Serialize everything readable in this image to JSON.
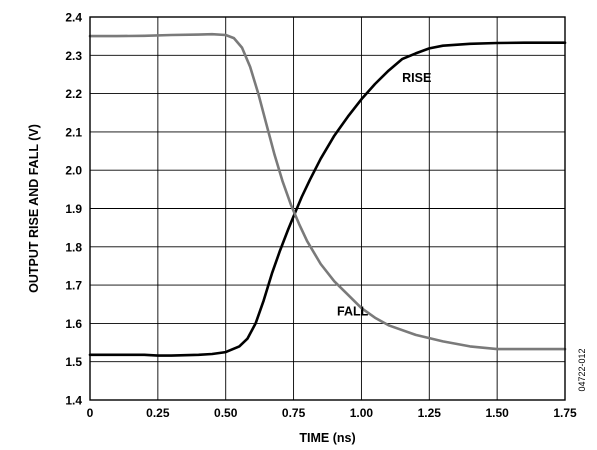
{
  "chart_data": {
    "type": "line",
    "xlabel": "TIME (ns)",
    "ylabel": "OUTPUT RISE AND FALL (V)",
    "xlim": [
      0,
      1.75
    ],
    "ylim": [
      1.4,
      2.4
    ],
    "x_ticks": [
      "0",
      "0.25",
      "0.50",
      "0.75",
      "1.00",
      "1.25",
      "1.50",
      "1.75"
    ],
    "y_ticks": [
      "1.4",
      "1.5",
      "1.6",
      "1.7",
      "1.8",
      "1.9",
      "2.0",
      "2.1",
      "2.2",
      "2.3",
      "2.4"
    ],
    "grid": true,
    "annotations": [
      "RISE",
      "FALL"
    ],
    "figure_id": "04722-012",
    "series": [
      {
        "name": "RISE",
        "color": "#000000",
        "points": [
          [
            0,
            1.518
          ],
          [
            0.1,
            1.518
          ],
          [
            0.2,
            1.518
          ],
          [
            0.25,
            1.516
          ],
          [
            0.3,
            1.516
          ],
          [
            0.4,
            1.518
          ],
          [
            0.45,
            1.52
          ],
          [
            0.5,
            1.525
          ],
          [
            0.55,
            1.54
          ],
          [
            0.58,
            1.56
          ],
          [
            0.61,
            1.6
          ],
          [
            0.64,
            1.66
          ],
          [
            0.67,
            1.73
          ],
          [
            0.7,
            1.79
          ],
          [
            0.73,
            1.845
          ],
          [
            0.75,
            1.88
          ],
          [
            0.78,
            1.93
          ],
          [
            0.81,
            1.975
          ],
          [
            0.85,
            2.03
          ],
          [
            0.9,
            2.09
          ],
          [
            0.95,
            2.14
          ],
          [
            1.0,
            2.185
          ],
          [
            1.05,
            2.225
          ],
          [
            1.1,
            2.26
          ],
          [
            1.15,
            2.29
          ],
          [
            1.2,
            2.305
          ],
          [
            1.25,
            2.318
          ],
          [
            1.3,
            2.325
          ],
          [
            1.4,
            2.33
          ],
          [
            1.5,
            2.332
          ],
          [
            1.6,
            2.333
          ],
          [
            1.75,
            2.333
          ]
        ]
      },
      {
        "name": "FALL",
        "color": "#7a7a7a",
        "points": [
          [
            0,
            2.35
          ],
          [
            0.1,
            2.35
          ],
          [
            0.2,
            2.351
          ],
          [
            0.3,
            2.353
          ],
          [
            0.4,
            2.354
          ],
          [
            0.45,
            2.355
          ],
          [
            0.5,
            2.353
          ],
          [
            0.53,
            2.345
          ],
          [
            0.56,
            2.32
          ],
          [
            0.59,
            2.27
          ],
          [
            0.62,
            2.2
          ],
          [
            0.65,
            2.12
          ],
          [
            0.68,
            2.04
          ],
          [
            0.71,
            1.97
          ],
          [
            0.74,
            1.91
          ],
          [
            0.77,
            1.86
          ],
          [
            0.8,
            1.815
          ],
          [
            0.85,
            1.755
          ],
          [
            0.9,
            1.71
          ],
          [
            0.95,
            1.675
          ],
          [
            1.0,
            1.64
          ],
          [
            1.05,
            1.615
          ],
          [
            1.1,
            1.595
          ],
          [
            1.2,
            1.57
          ],
          [
            1.3,
            1.553
          ],
          [
            1.4,
            1.54
          ],
          [
            1.5,
            1.533
          ],
          [
            1.6,
            1.533
          ],
          [
            1.75,
            1.533
          ]
        ]
      }
    ]
  }
}
